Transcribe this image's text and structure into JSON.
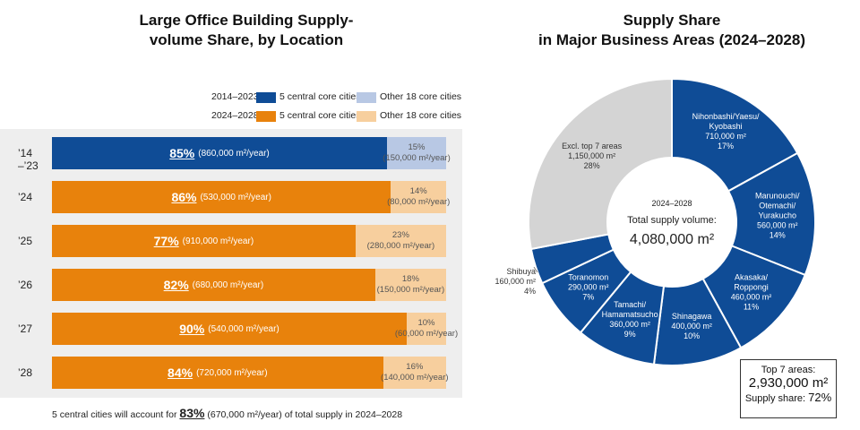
{
  "left_chart": {
    "title_line1": "Large Office Building Supply-",
    "title_line2": "volume Share, by Location",
    "legend": {
      "period1": "2014–2023",
      "period2": "2024–2028",
      "central_label": "5 central core cities",
      "other_label": "Other 18 core cities"
    },
    "footnote_pre": "5 central cities will account for ",
    "footnote_pct": "83%",
    "footnote_post": " (670,000 m²/year) of total supply in 2024–2028"
  },
  "right_chart": {
    "title_line1": "Supply Share",
    "title_line2": "in Major Business Areas (2024–2028)",
    "center_period": "2024–2028",
    "center_label": "Total supply volume:",
    "center_value": "4,080,000 m²",
    "top7_label": "Top 7 areas:",
    "top7_value": "2,930,000 m²",
    "top7_share_label": "Supply share:",
    "top7_share_value": "72%"
  },
  "chart_data": [
    {
      "type": "bar",
      "orientation": "horizontal-stacked",
      "title": "Large Office Building Supply-volume Share, by Location",
      "categories": [
        "’14 –’23",
        "’24",
        "’25",
        "’26",
        "’27",
        "’28"
      ],
      "series": [
        {
          "name": "5 central core cities",
          "values": [
            85,
            86,
            77,
            82,
            90,
            84
          ],
          "pct_labels": [
            "85%",
            "86%",
            "77%",
            "82%",
            "90%",
            "84%"
          ],
          "volume_labels": [
            "(860,000 m²/year)",
            "(530,000 m²/year)",
            "(910,000 m²/year)",
            "(680,000 m²/year)",
            "(540,000 m²/year)",
            "(720,000 m²/year)"
          ]
        },
        {
          "name": "Other 18 core cities",
          "values": [
            15,
            14,
            23,
            18,
            10,
            16
          ],
          "pct_labels": [
            "15%",
            "14%",
            "23%",
            "18%",
            "10%",
            "16%"
          ],
          "volume_labels": [
            "(150,000 m²/year)",
            "(80,000 m²/year)",
            "(280,000 m²/year)",
            "(150,000 m²/year)",
            "(60,000 m²/year)",
            "(140,000 m²/year)"
          ]
        }
      ],
      "colors": {
        "central_2014_2023": "#0f4c96",
        "other_2014_2023": "#b8c8e4",
        "central_2024_2028": "#e8820c",
        "other_2024_2028": "#f7cf9e"
      },
      "xlim": [
        0,
        100
      ]
    },
    {
      "type": "pie",
      "style": "donut",
      "title": "Supply Share in Major Business Areas (2024–2028)",
      "slices": [
        {
          "name_lines": [
            "Nihonbashi/Yaesu/",
            "Kyobashi"
          ],
          "value_label": "710,000 m²",
          "pct": 17,
          "pct_label": "17%"
        },
        {
          "name_lines": [
            "Marunouchi/",
            "Otemachi/",
            "Yurakucho"
          ],
          "value_label": "560,000 m²",
          "pct": 14,
          "pct_label": "14%"
        },
        {
          "name_lines": [
            "Akasaka/",
            "Roppongi"
          ],
          "value_label": "460,000 m²",
          "pct": 11,
          "pct_label": "11%"
        },
        {
          "name_lines": [
            "Shinagawa"
          ],
          "value_label": "400,000 m²",
          "pct": 10,
          "pct_label": "10%"
        },
        {
          "name_lines": [
            "Tamachi/",
            "Hamamatsucho"
          ],
          "value_label": "360,000 m²",
          "pct": 9,
          "pct_label": "9%"
        },
        {
          "name_lines": [
            "Toranomon"
          ],
          "value_label": "290,000 m²",
          "pct": 7,
          "pct_label": "7%"
        },
        {
          "name_lines": [
            "Shibuya"
          ],
          "value_label": "160,000 m²",
          "pct": 4,
          "pct_label": "4%"
        },
        {
          "name_lines": [
            "Excl. top 7 areas"
          ],
          "value_label": "1,150,000 m²",
          "pct": 28,
          "pct_label": "28%"
        }
      ],
      "colors": {
        "area": "#0f4c96",
        "rest": "#d4d4d4",
        "outside_text": "#333333",
        "inside_text": "#ffffff"
      }
    }
  ]
}
